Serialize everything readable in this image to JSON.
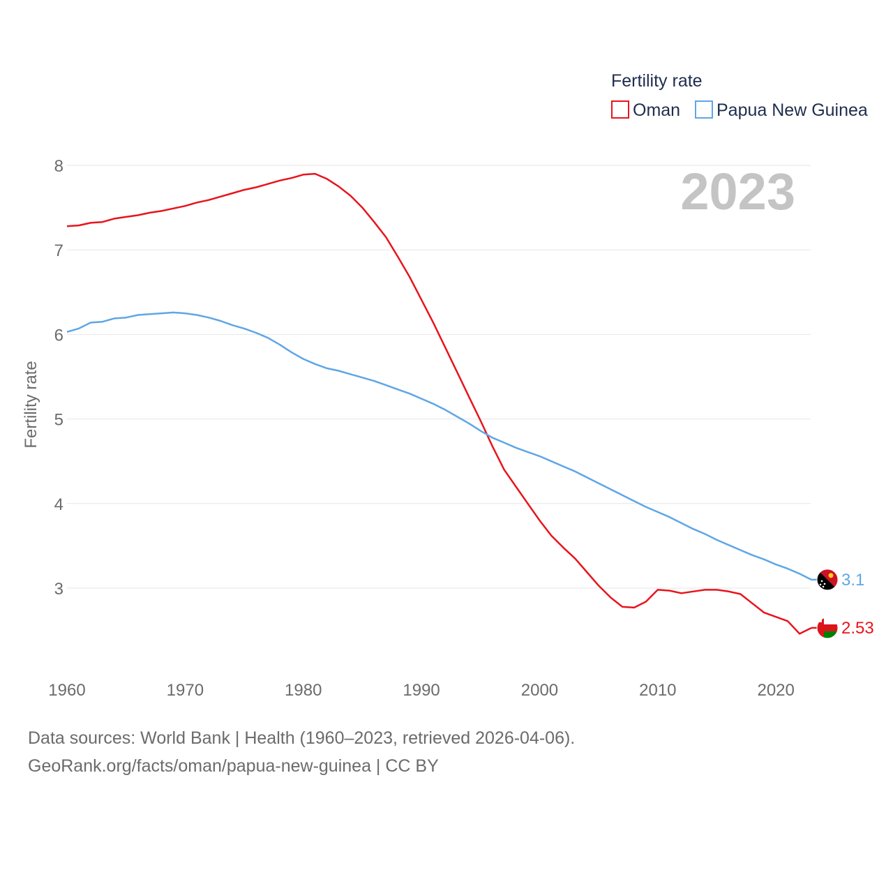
{
  "chart_data": {
    "type": "line",
    "legend_title": "Fertility rate",
    "ylabel": "Fertility rate",
    "xlabel": "",
    "year_overlay": "2023",
    "xlim": [
      1960,
      2023
    ],
    "ylim": [
      2.2,
      8.1
    ],
    "x_ticks": [
      1960,
      1970,
      1980,
      1990,
      2000,
      2010,
      2020
    ],
    "y_ticks": [
      3,
      4,
      5,
      6,
      7,
      8
    ],
    "x": [
      1960,
      1961,
      1962,
      1963,
      1964,
      1965,
      1966,
      1967,
      1968,
      1969,
      1970,
      1971,
      1972,
      1973,
      1974,
      1975,
      1976,
      1977,
      1978,
      1979,
      1980,
      1981,
      1982,
      1983,
      1984,
      1985,
      1986,
      1987,
      1988,
      1989,
      1990,
      1991,
      1992,
      1993,
      1994,
      1995,
      1996,
      1997,
      1998,
      1999,
      2000,
      2001,
      2002,
      2003,
      2004,
      2005,
      2006,
      2007,
      2008,
      2009,
      2010,
      2011,
      2012,
      2013,
      2014,
      2015,
      2016,
      2017,
      2018,
      2019,
      2020,
      2021,
      2022,
      2023
    ],
    "series": [
      {
        "name": "Oman",
        "color": "#e8141c",
        "end_label": "2.53",
        "flag": "oman-flag-icon",
        "values": [
          7.28,
          7.29,
          7.32,
          7.33,
          7.37,
          7.39,
          7.41,
          7.44,
          7.46,
          7.49,
          7.52,
          7.56,
          7.59,
          7.63,
          7.67,
          7.71,
          7.74,
          7.78,
          7.82,
          7.85,
          7.89,
          7.9,
          7.84,
          7.75,
          7.64,
          7.5,
          7.33,
          7.15,
          6.92,
          6.68,
          6.41,
          6.14,
          5.85,
          5.56,
          5.27,
          4.98,
          4.68,
          4.4,
          4.2,
          4.0,
          3.8,
          3.62,
          3.48,
          3.35,
          3.19,
          3.03,
          2.89,
          2.78,
          2.77,
          2.84,
          2.98,
          2.97,
          2.94,
          2.96,
          2.98,
          2.98,
          2.96,
          2.93,
          2.82,
          2.71,
          2.66,
          2.61,
          2.46,
          2.53
        ]
      },
      {
        "name": "Papua New Guinea",
        "color": "#5fa6e6",
        "end_label": "3.1",
        "flag": "png-flag-icon",
        "values": [
          6.03,
          6.07,
          6.14,
          6.15,
          6.19,
          6.2,
          6.23,
          6.24,
          6.25,
          6.26,
          6.25,
          6.23,
          6.2,
          6.16,
          6.11,
          6.07,
          6.02,
          5.96,
          5.88,
          5.79,
          5.71,
          5.65,
          5.6,
          5.57,
          5.53,
          5.49,
          5.45,
          5.4,
          5.35,
          5.3,
          5.24,
          5.18,
          5.11,
          5.03,
          4.95,
          4.86,
          4.78,
          4.72,
          4.66,
          4.61,
          4.56,
          4.5,
          4.44,
          4.38,
          4.31,
          4.24,
          4.17,
          4.1,
          4.03,
          3.96,
          3.9,
          3.84,
          3.77,
          3.7,
          3.64,
          3.57,
          3.51,
          3.45,
          3.39,
          3.34,
          3.28,
          3.23,
          3.17,
          3.1
        ]
      }
    ]
  },
  "footer": {
    "sources": "Data sources: World Bank | Health (1960–2023, retrieved 2026-04-06).",
    "attribution": "GeoRank.org/facts/oman/papua-new-guinea | CC BY"
  }
}
